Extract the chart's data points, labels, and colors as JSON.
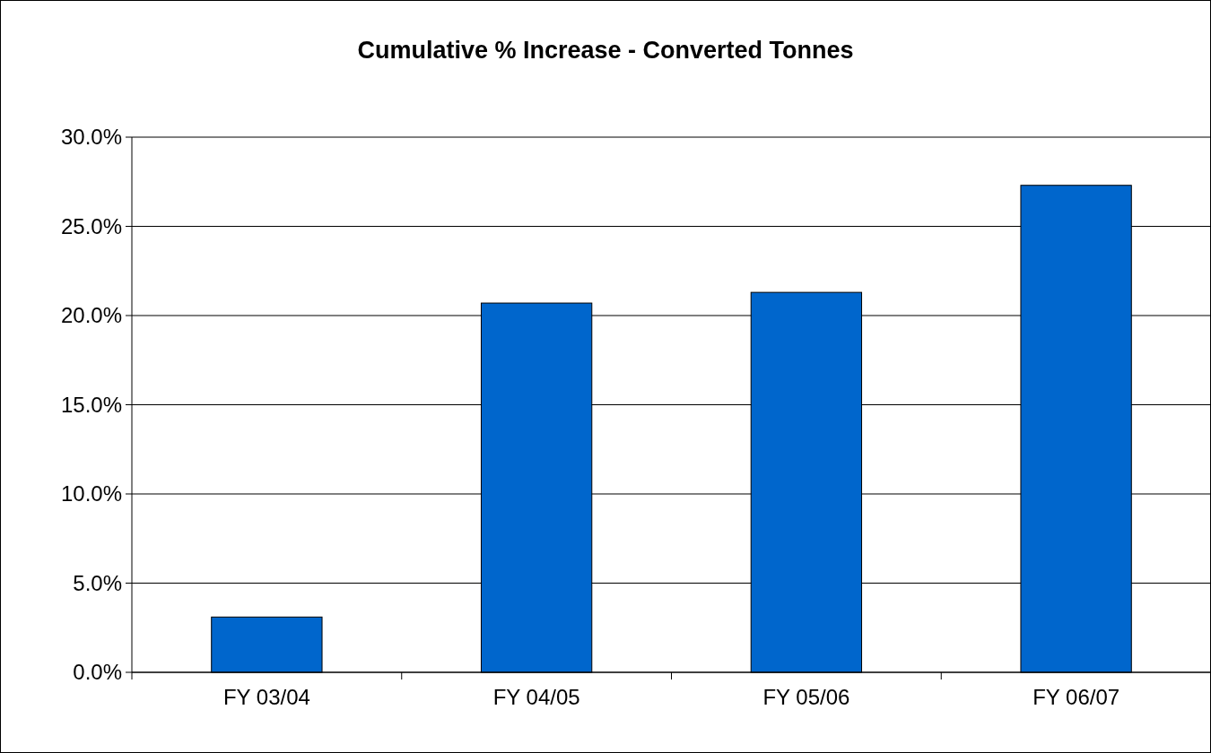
{
  "chart_data": {
    "type": "bar",
    "title": "Cumulative % Increase - Converted Tonnes",
    "categories": [
      "FY 03/04",
      "FY 04/05",
      "FY 05/06",
      "FY 06/07"
    ],
    "values": [
      3.1,
      20.7,
      21.3,
      27.3
    ],
    "color": "#0066cc",
    "ylim": [
      0,
      30
    ],
    "yticks": [
      {
        "value": 0,
        "label": "0.0%"
      },
      {
        "value": 5,
        "label": "5.0%"
      },
      {
        "value": 10,
        "label": "10.0%"
      },
      {
        "value": 15,
        "label": "15.0%"
      },
      {
        "value": 20,
        "label": "20.0%"
      },
      {
        "value": 25,
        "label": "25.0%"
      },
      {
        "value": 30,
        "label": "30.0%"
      }
    ],
    "grid": "y"
  }
}
